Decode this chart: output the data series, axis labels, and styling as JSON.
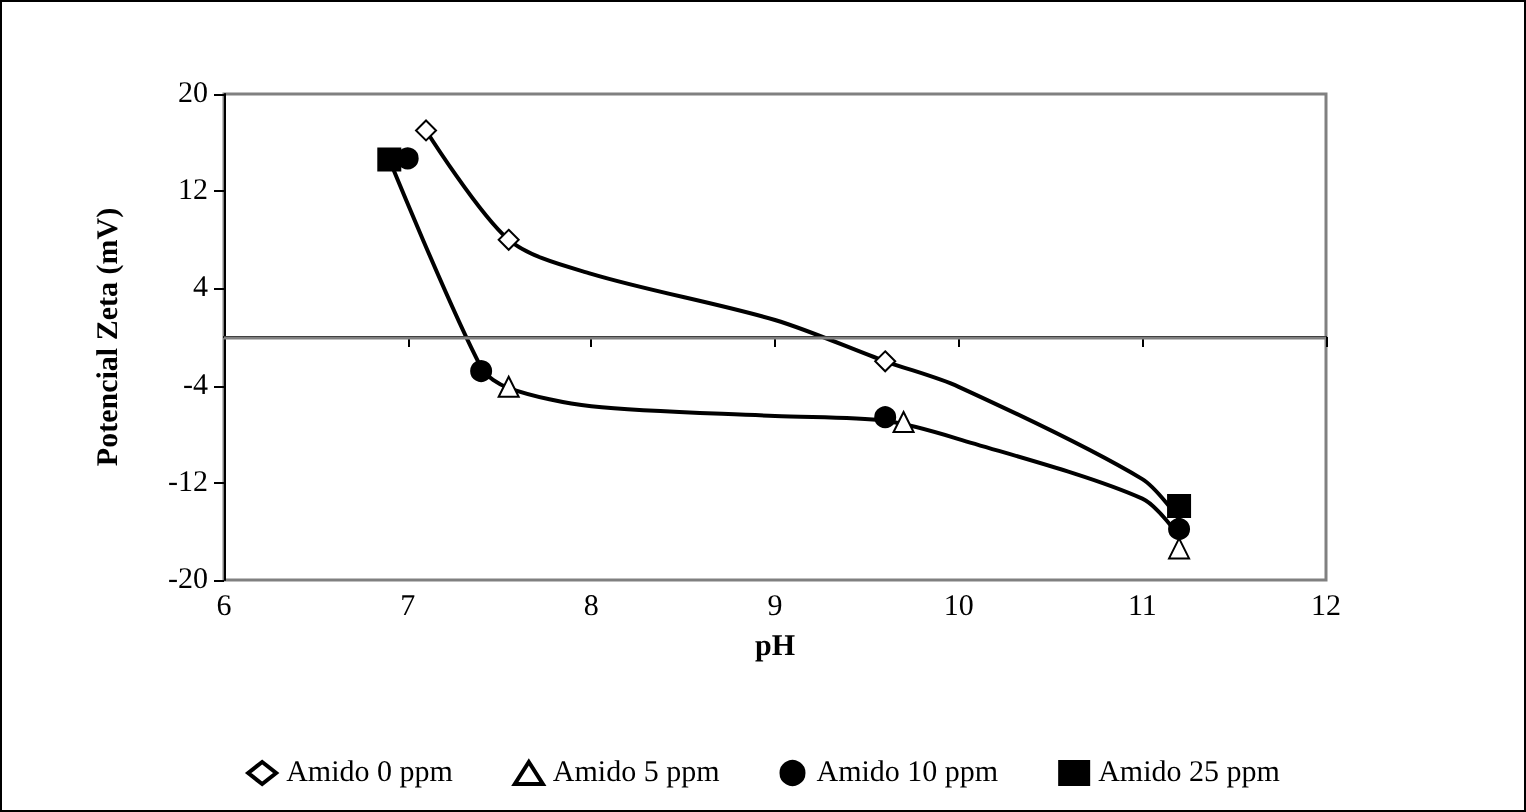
{
  "chart_data": {
    "type": "scatter",
    "xlabel": "pH",
    "ylabel": "Potencial Zeta (mV)",
    "xlim": [
      6,
      12
    ],
    "xticks": [
      6,
      7,
      8,
      9,
      10,
      11,
      12
    ],
    "ylim": [
      -20,
      20
    ],
    "yticks": [
      -20,
      -12,
      -4,
      4,
      12,
      20
    ],
    "grid": false,
    "legend": "bottom",
    "ref_lines": [
      {
        "axis": "y",
        "value": 0,
        "color": "#808080"
      }
    ],
    "series": [
      {
        "type": "line",
        "color": "#000000",
        "marker": "none",
        "x": [
          7.1,
          7.55,
          8,
          9,
          9.6,
          10,
          11,
          11.2
        ],
        "values": [
          17,
          8,
          5.2,
          1.4,
          -2,
          -4.1,
          -11.7,
          -15
        ]
      },
      {
        "type": "line",
        "color": "#000000",
        "marker": "none",
        "x": [
          6.9,
          7.4,
          7.55,
          8,
          9,
          9.6,
          10,
          11,
          11.2
        ],
        "values": [
          14.6,
          -2.5,
          -4.2,
          -5.7,
          -6.5,
          -6.9,
          -8.4,
          -13.3,
          -16.4
        ]
      },
      {
        "name": "Amido 0 ppm",
        "color": "#ffffff",
        "marker": "diamond",
        "x": [
          7.1,
          7.55,
          9.6
        ],
        "values": [
          17,
          8,
          -2
        ]
      },
      {
        "name": "Amido 5 ppm",
        "color": "#ffffff",
        "marker": "triangle",
        "x": [
          7.55,
          9.7,
          11.2
        ],
        "values": [
          -4.1,
          -7,
          -17.4
        ]
      },
      {
        "name": "Amido 10 ppm",
        "color": "#000000",
        "marker": "circle",
        "x": [
          7,
          7.4,
          9.6,
          11.2
        ],
        "values": [
          14.7,
          -2.8,
          -6.6,
          -15.8
        ]
      },
      {
        "name": "Amido 25 ppm",
        "color": "#000000",
        "marker": "square",
        "x": [
          6.9,
          11.2
        ],
        "values": [
          14.6,
          -13.9
        ]
      }
    ]
  }
}
